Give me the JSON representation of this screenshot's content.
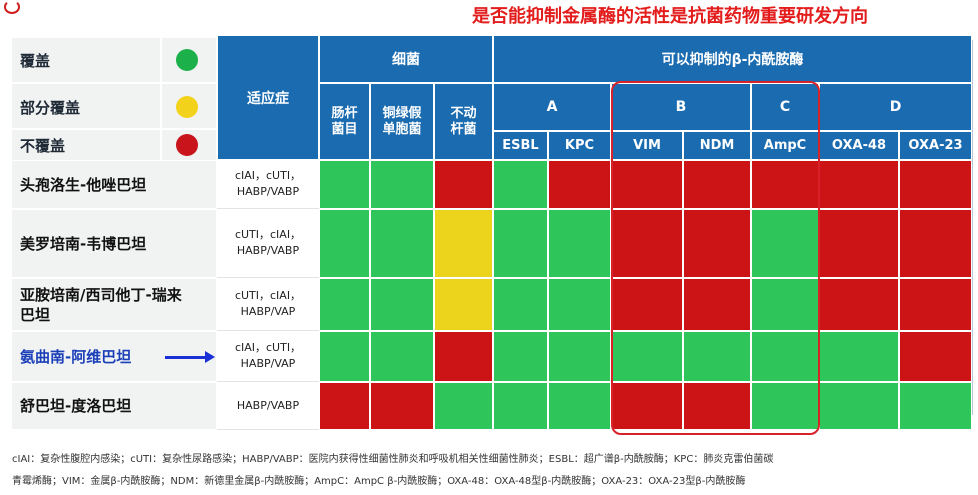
{
  "headline": "是否能抑制金属酶的活性是抗菌药物重要研发方向",
  "legend": [
    {
      "label": "覆盖",
      "color": "#1bb04a"
    },
    {
      "label": "部分覆盖",
      "color": "#f2d21a"
    },
    {
      "label": "不覆盖",
      "color": "#c8141a"
    }
  ],
  "header": {
    "indication": "适应症",
    "bacteria": "细菌",
    "inhibit": "可以抑制的β-内酰胺酶",
    "bacteria_cols": [
      "肠杆\n菌目",
      "铜绿假\n单胞菌",
      "不动\n杆菌"
    ],
    "groups": [
      "A",
      "B",
      "C",
      "D"
    ],
    "enzymes": [
      "ESBL",
      "KPC",
      "VIM",
      "NDM",
      "AmpC",
      "OXA-48",
      "OXA-23"
    ]
  },
  "colors": {
    "G": "#2ec55a",
    "Y": "#ecd41c",
    "R": "#cc1417",
    "header": "#1a6bb0"
  },
  "rows": [
    {
      "name": "头孢洛生-他唑巴坦",
      "indication": "cIAI，cUTI，\nHABP/VABP",
      "cells": [
        "G",
        "G",
        "R",
        "G",
        "R",
        "R",
        "R",
        "R",
        "R",
        "R"
      ]
    },
    {
      "name": "美罗培南-韦博巴坦",
      "indication": "cUTI，cIAI，\nHABP/VABP",
      "cells": [
        "G",
        "G",
        "Y",
        "G",
        "G",
        "R",
        "R",
        "G",
        "R",
        "R"
      ]
    },
    {
      "name": "亚胺培南/西司他丁-瑞来\n巴坦",
      "indication": "cUTI，cIAI，\nHABP/VAP",
      "cells": [
        "G",
        "G",
        "Y",
        "G",
        "G",
        "R",
        "R",
        "G",
        "R",
        "R"
      ]
    },
    {
      "name": "氨曲南-阿维巴坦",
      "indication": "cIAI，cUTI，\nHABP/VAP",
      "cells": [
        "G",
        "G",
        "R",
        "G",
        "G",
        "G",
        "G",
        "G",
        "G",
        "R"
      ],
      "highlight": true
    },
    {
      "name": "舒巴坦-度洛巴坦",
      "indication": "HABP/VABP",
      "cells": [
        "R",
        "R",
        "G",
        "G",
        "G",
        "R",
        "R",
        "G",
        "G",
        "G"
      ]
    }
  ],
  "footnote": [
    "cIAI：复杂性腹腔内感染；cUTI：复杂性尿路感染；HABP/VABP：医院内获得性细菌性肺炎和呼吸机相关性细菌性肺炎；ESBL：超广谱β-内酰胺酶；KPC：肺炎克雷伯菌碳",
    "青霉烯酶；VIM：金属β-内酰胺酶；NDM：新德里金属β-内酰胺酶；AmpC：AmpC β-内酰胺酶；OXA-48：OXA-48型β-内酰胺酶；OXA-23：OXA-23型β-内酰胺酶"
  ]
}
